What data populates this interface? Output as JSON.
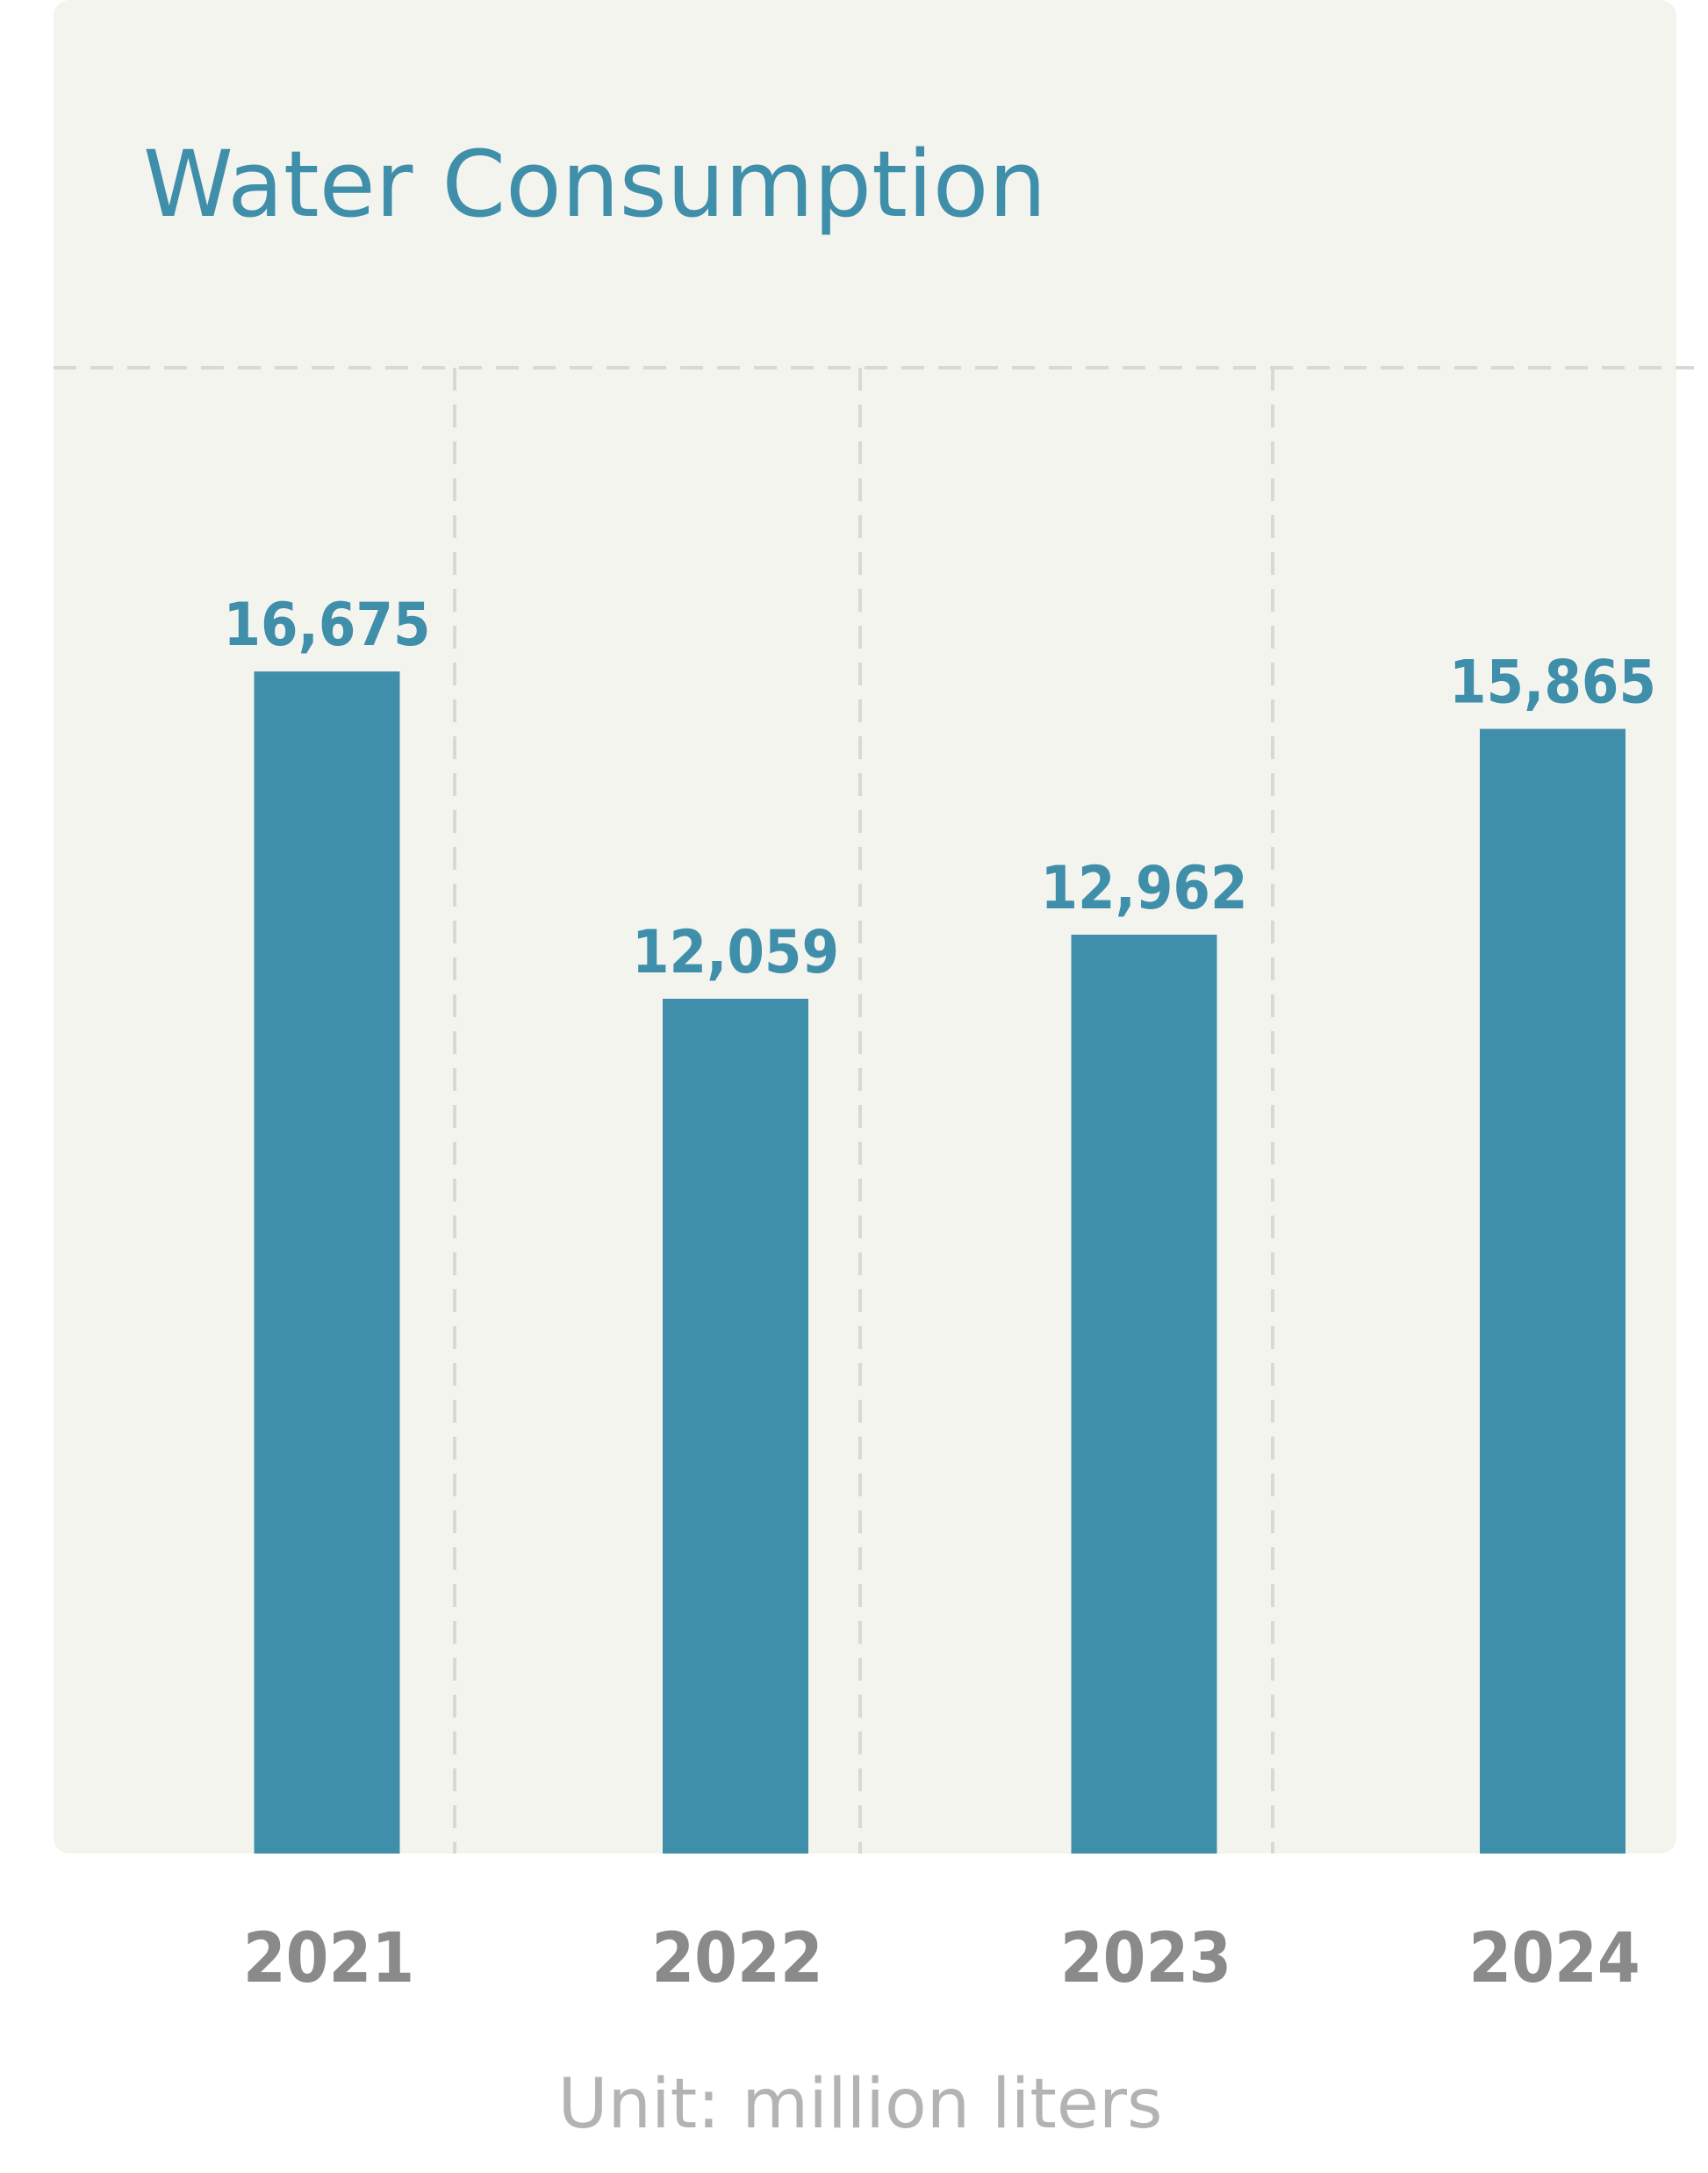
{
  "colors": {
    "panel_background": "#f4f4ef",
    "bar": "#3f8fab",
    "title": "#3f8fab",
    "value_label": "#3f8fab",
    "tick_label": "#8a8a8a",
    "unit_label": "#b3b3b3",
    "gridline": "#d9d9d4"
  },
  "chart_data": {
    "type": "bar",
    "title": "Water Consumption",
    "categories": [
      "2021",
      "2022",
      "2023",
      "2024"
    ],
    "values": [
      16675,
      12059,
      12962,
      15865
    ],
    "value_labels": [
      "16,675",
      "12,059",
      "12,962",
      "15,865"
    ],
    "unit_note": "Unit: million liters",
    "ylim": [
      0,
      20960
    ],
    "grid": true,
    "legend": "none"
  }
}
